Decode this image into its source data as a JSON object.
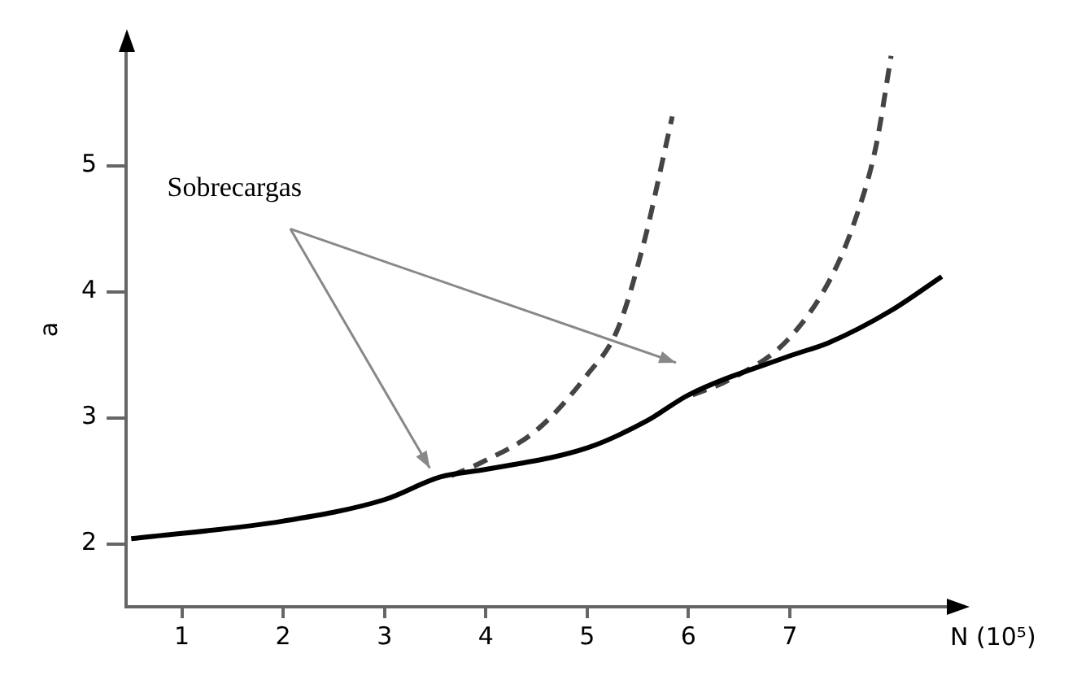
{
  "chart_data": {
    "type": "line",
    "xlabel": "N (10⁵)",
    "ylabel": "a",
    "annotations": [
      "Sobrecargas"
    ],
    "xlim": [
      0.45,
      8.55
    ],
    "ylim": [
      1.5,
      5.9
    ],
    "xticks": [
      1,
      2,
      3,
      4,
      5,
      6,
      7
    ],
    "yticks": [
      2,
      3,
      4,
      5
    ],
    "grid": false,
    "legend": false,
    "marker": "none",
    "series": [
      {
        "color": "#000000",
        "line_style": "solid",
        "x": [
          0.5,
          2,
          3,
          3.55,
          4,
          5,
          5.6,
          6,
          7,
          7.4,
          8,
          8.5
        ],
        "values": [
          2.04,
          2.18,
          2.35,
          2.53,
          2.59,
          2.76,
          2.98,
          3.18,
          3.49,
          3.6,
          3.85,
          4.12
        ]
      },
      {
        "color": "#444444",
        "line_style": "dashed",
        "x": [
          3.66,
          3.97,
          4.5,
          5,
          5.3,
          5.57,
          5.75,
          5.84
        ],
        "values": [
          2.54,
          2.65,
          2.9,
          3.34,
          3.7,
          4.42,
          5.06,
          5.39
        ]
      },
      {
        "color": "#444444",
        "line_style": "dashed",
        "x": [
          6.04,
          6.4,
          6.97,
          7.4,
          7.65,
          7.85,
          8
        ],
        "values": [
          3.18,
          3.3,
          3.61,
          4.1,
          4.58,
          5.15,
          5.87
        ]
      }
    ]
  }
}
